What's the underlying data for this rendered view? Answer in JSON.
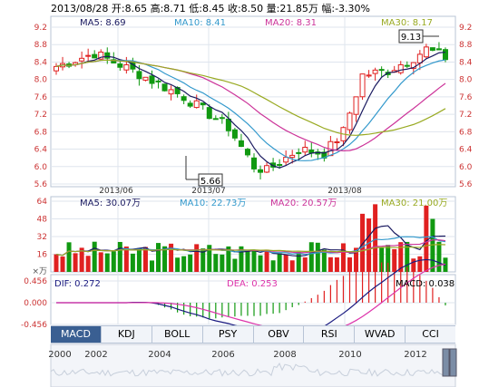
{
  "header": {
    "text": "2013/08/28 开:8.65  高:8.71  低:8.45  收:8.50  量:21.85万  幅:-3.30%"
  },
  "colors": {
    "up": "#e02020",
    "down": "#119911",
    "ma5": "#1a1a60",
    "ma10": "#3399cc",
    "ma20": "#cc3399",
    "ma30": "#99aa22"
  },
  "price_chart": {
    "ma_labels": [
      {
        "text": "MA5: 8.69",
        "color": "#1a1a60"
      },
      {
        "text": "MA10: 8.41",
        "color": "#3399cc"
      },
      {
        "text": "MA20: 8.31",
        "color": "#cc3399"
      },
      {
        "text": "MA30: 8.17",
        "color": "#99aa22"
      }
    ],
    "y_ticks": [
      "9.2",
      "8.8",
      "8.4",
      "8.0",
      "7.6",
      "7.2",
      "6.8",
      "6.4",
      "6.0",
      "5.6"
    ],
    "x_ticks": [
      "2013/06",
      "2013/07",
      "2013/08"
    ],
    "high_callout": "9.13",
    "low_callout": "5.66"
  },
  "volume_chart": {
    "ma_labels": [
      {
        "text": "MA5: 30.07万",
        "color": "#1a1a60"
      },
      {
        "text": "MA10: 22.73万",
        "color": "#3399cc"
      },
      {
        "text": "MA20: 20.57万",
        "color": "#cc3399"
      },
      {
        "text": "MA30: 21.00万",
        "color": "#99aa22"
      }
    ],
    "y_ticks": [
      "64",
      "48",
      "32",
      "16"
    ],
    "unit": "×万"
  },
  "macd_chart": {
    "dif_label": "DIF: 0.272",
    "dea_label": "DEA: 0.253",
    "macd_label": "MACD: 0.038",
    "y_ticks": [
      "0.456",
      "0.000",
      "-0.456"
    ]
  },
  "indicator_tabs": [
    "MACD",
    "KDJ",
    "BOLL",
    "PSY",
    "OBV",
    "RSI",
    "WVAD",
    "CCI"
  ],
  "timeline": {
    "labels": [
      "2000",
      "2002",
      "2004",
      "2006",
      "2008",
      "2010",
      "2012"
    ]
  }
}
